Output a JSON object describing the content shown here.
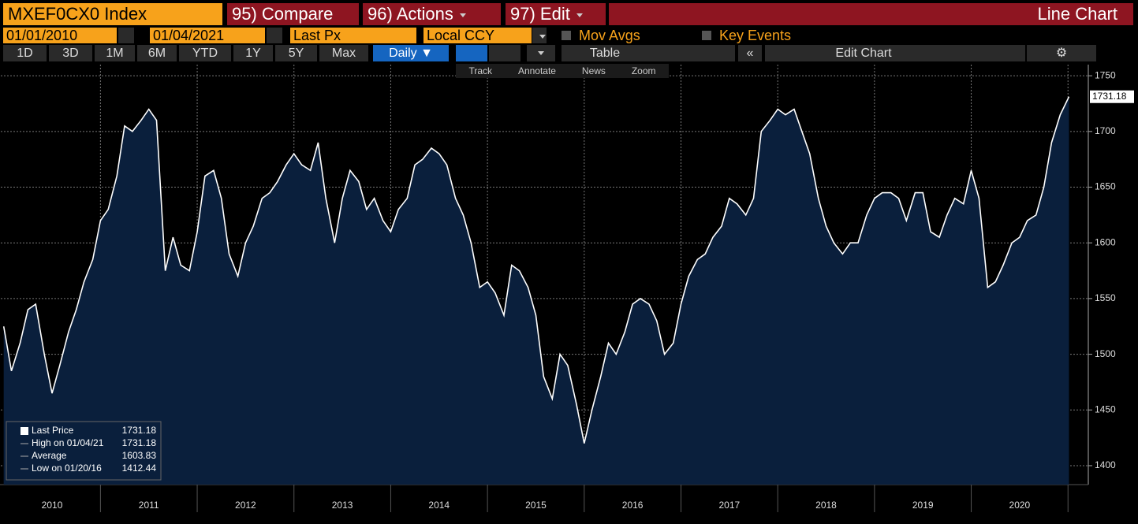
{
  "toolbar": {
    "ticker": "MXEF0CX0 Index",
    "compare": "95) Compare",
    "actions": "96) Actions",
    "edit": "97) Edit",
    "chart_kind": "Line Chart"
  },
  "settings": {
    "start_date": "01/01/2010",
    "end_date": "01/04/2021",
    "field": "Last Px",
    "currency": "Local CCY",
    "mov_avgs": "Mov Avgs",
    "key_events": "Key Events"
  },
  "periods": [
    "1D",
    "3D",
    "1M",
    "6M",
    "YTD",
    "1Y",
    "5Y",
    "Max"
  ],
  "frequency": "Daily",
  "table": "Table",
  "edit_chart": "Edit Chart",
  "tools": [
    "Track",
    "Annotate",
    "News",
    "Zoom"
  ],
  "chart_data": {
    "type": "line",
    "x": [
      2010.0,
      2010.08,
      2010.17,
      2010.25,
      2010.33,
      2010.42,
      2010.5,
      2010.58,
      2010.67,
      2010.75,
      2010.83,
      2010.92,
      2011.0,
      2011.08,
      2011.17,
      2011.25,
      2011.33,
      2011.42,
      2011.5,
      2011.58,
      2011.67,
      2011.75,
      2011.83,
      2011.92,
      2012.0,
      2012.08,
      2012.17,
      2012.25,
      2012.33,
      2012.42,
      2012.5,
      2012.58,
      2012.67,
      2012.75,
      2012.83,
      2012.92,
      2013.0,
      2013.08,
      2013.17,
      2013.25,
      2013.33,
      2013.42,
      2013.5,
      2013.58,
      2013.67,
      2013.75,
      2013.83,
      2013.92,
      2014.0,
      2014.08,
      2014.17,
      2014.25,
      2014.33,
      2014.42,
      2014.5,
      2014.58,
      2014.67,
      2014.75,
      2014.83,
      2014.92,
      2015.0,
      2015.08,
      2015.17,
      2015.25,
      2015.33,
      2015.42,
      2015.5,
      2015.58,
      2015.67,
      2015.75,
      2015.83,
      2015.92,
      2016.0,
      2016.08,
      2016.17,
      2016.25,
      2016.33,
      2016.42,
      2016.5,
      2016.58,
      2016.67,
      2016.75,
      2016.83,
      2016.92,
      2017.0,
      2017.08,
      2017.17,
      2017.25,
      2017.33,
      2017.42,
      2017.5,
      2017.58,
      2017.67,
      2017.75,
      2017.83,
      2017.92,
      2018.0,
      2018.08,
      2018.17,
      2018.25,
      2018.33,
      2018.42,
      2018.5,
      2018.58,
      2018.67,
      2018.75,
      2018.83,
      2018.92,
      2019.0,
      2019.08,
      2019.17,
      2019.25,
      2019.33,
      2019.42,
      2019.5,
      2019.58,
      2019.67,
      2019.75,
      2019.83,
      2019.92,
      2020.0,
      2020.08,
      2020.17,
      2020.25,
      2020.33,
      2020.42,
      2020.5,
      2020.58,
      2020.67,
      2020.75,
      2020.83,
      2020.92,
      2021.01
    ],
    "series": [
      {
        "name": "Last Price",
        "color": "#ffffff",
        "values": [
          1525,
          1485,
          1510,
          1540,
          1545,
          1500,
          1465,
          1490,
          1520,
          1540,
          1565,
          1585,
          1620,
          1630,
          1660,
          1705,
          1700,
          1710,
          1720,
          1710,
          1575,
          1605,
          1580,
          1575,
          1610,
          1660,
          1665,
          1640,
          1590,
          1570,
          1600,
          1615,
          1640,
          1645,
          1655,
          1670,
          1680,
          1670,
          1665,
          1690,
          1640,
          1600,
          1640,
          1665,
          1655,
          1630,
          1640,
          1620,
          1610,
          1630,
          1640,
          1670,
          1675,
          1685,
          1680,
          1670,
          1640,
          1625,
          1600,
          1560,
          1565,
          1555,
          1535,
          1580,
          1575,
          1560,
          1535,
          1480,
          1460,
          1500,
          1490,
          1455,
          1420,
          1450,
          1480,
          1510,
          1500,
          1520,
          1545,
          1550,
          1545,
          1530,
          1500,
          1510,
          1545,
          1570,
          1585,
          1590,
          1605,
          1615,
          1640,
          1635,
          1625,
          1640,
          1700,
          1710,
          1720,
          1715,
          1720,
          1700,
          1680,
          1640,
          1615,
          1600,
          1590,
          1600,
          1600,
          1625,
          1640,
          1645,
          1645,
          1640,
          1620,
          1645,
          1645,
          1610,
          1605,
          1625,
          1640,
          1635,
          1665,
          1640,
          1560,
          1565,
          1580,
          1600,
          1605,
          1620,
          1625,
          1650,
          1690,
          1715,
          1731.18
        ]
      }
    ],
    "area_color": "#0a1f3c",
    "xlim": [
      2009.97,
      2021.21
    ],
    "xticks": [
      {
        "value": 2010.5,
        "label": "2010"
      },
      {
        "value": 2011.5,
        "label": "2011"
      },
      {
        "value": 2012.5,
        "label": "2012"
      },
      {
        "value": 2013.5,
        "label": "2013"
      },
      {
        "value": 2014.5,
        "label": "2014"
      },
      {
        "value": 2015.5,
        "label": "2015"
      },
      {
        "value": 2016.5,
        "label": "2016"
      },
      {
        "value": 2017.5,
        "label": "2017"
      },
      {
        "value": 2018.5,
        "label": "2018"
      },
      {
        "value": 2019.5,
        "label": "2019"
      },
      {
        "value": 2020.5,
        "label": "2020"
      }
    ],
    "ylim": [
      1383,
      1760
    ],
    "yticks": [
      1400,
      1450,
      1500,
      1550,
      1600,
      1650,
      1700,
      1750
    ],
    "grid": true,
    "legend_position": "bottom-left",
    "legend": [
      {
        "label": "Last Price",
        "value": 1731.18
      },
      {
        "label": "High on 01/04/21",
        "value": 1731.18
      },
      {
        "label": "Average",
        "value": 1603.83
      },
      {
        "label": "Low on 01/20/16",
        "value": 1412.44
      }
    ]
  }
}
